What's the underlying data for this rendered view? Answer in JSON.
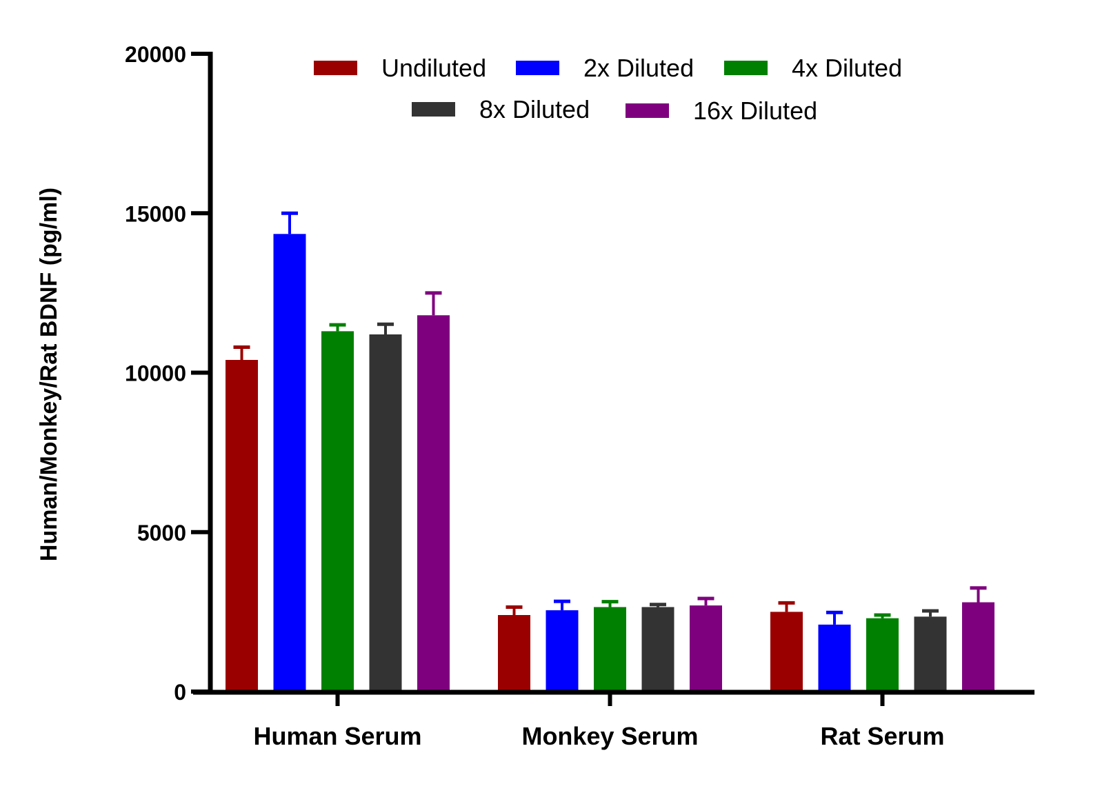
{
  "chart_data": {
    "type": "bar",
    "title": "",
    "xlabel": "",
    "ylabel": "Human/Monkey/Rat BDNF (pg/ml)",
    "ylim": [
      0,
      20000
    ],
    "yticks": [
      "0",
      "5000",
      "10000",
      "15000",
      "20000"
    ],
    "ytick_values": [
      0,
      5000,
      10000,
      15000,
      20000
    ],
    "categories": [
      "Human Serum",
      "Monkey Serum",
      "Rat Serum"
    ],
    "legend_position": "top",
    "grid": false,
    "error_bars": "upper",
    "series": [
      {
        "name": "Undiluted",
        "color": "#9b0000",
        "values": [
          10400,
          2400,
          2500
        ],
        "errors": [
          400,
          250,
          280
        ]
      },
      {
        "name": "2x Diluted",
        "color": "#0000ff",
        "values": [
          14350,
          2550,
          2100
        ],
        "errors": [
          650,
          280,
          380
        ]
      },
      {
        "name": "4x Diluted",
        "color": "#008000",
        "values": [
          11300,
          2650,
          2300
        ],
        "errors": [
          200,
          170,
          100
        ]
      },
      {
        "name": "8x Diluted",
        "color": "#333333",
        "values": [
          11200,
          2650,
          2350
        ],
        "errors": [
          320,
          80,
          180
        ]
      },
      {
        "name": "16x Diluted",
        "color": "#7f007f",
        "values": [
          11800,
          2700,
          2800
        ],
        "errors": [
          700,
          220,
          450
        ]
      }
    ]
  }
}
